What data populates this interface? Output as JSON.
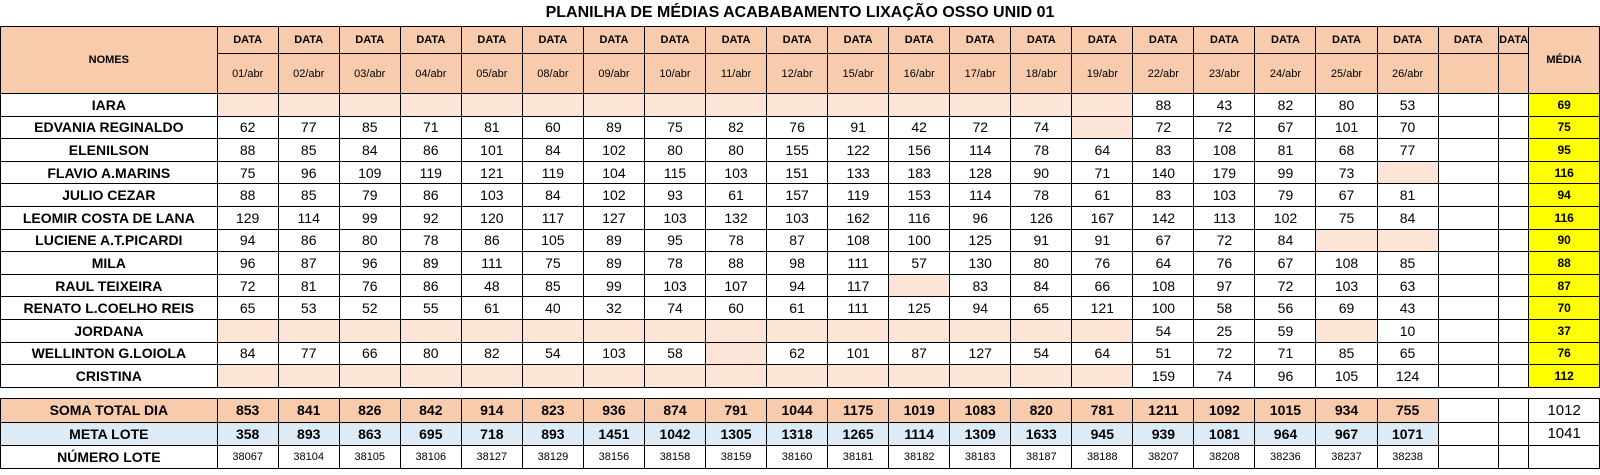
{
  "title": "PLANILHA DE MÉDIAS ACABABAMENTO LIXAÇÃO OSSO UNID 01",
  "header": {
    "names_label": "NOMES",
    "data_label": "DATA",
    "average_label": "MÉDIA",
    "dates": [
      "01/abr",
      "02/abr",
      "03/abr",
      "04/abr",
      "05/abr",
      "08/abr",
      "09/abr",
      "10/abr",
      "11/abr",
      "12/abr",
      "15/abr",
      "16/abr",
      "17/abr",
      "18/abr",
      "19/abr",
      "22/abr",
      "23/abr",
      "24/abr",
      "25/abr",
      "26/abr",
      "",
      ""
    ]
  },
  "rows": [
    {
      "name": "IARA",
      "values": [
        "",
        "",
        "",
        "",
        "",
        "",
        "",
        "",
        "",
        "",
        "",
        "",
        "",
        "",
        "",
        "88",
        "43",
        "82",
        "80",
        "53",
        "",
        ""
      ],
      "avg": "69"
    },
    {
      "name": "EDVANIA REGINALDO",
      "values": [
        "62",
        "77",
        "85",
        "71",
        "81",
        "60",
        "89",
        "75",
        "82",
        "76",
        "91",
        "42",
        "72",
        "74",
        "",
        "72",
        "72",
        "67",
        "101",
        "70",
        "",
        ""
      ],
      "avg": "75"
    },
    {
      "name": "ELENILSON",
      "values": [
        "88",
        "85",
        "84",
        "86",
        "101",
        "84",
        "102",
        "80",
        "80",
        "155",
        "122",
        "156",
        "114",
        "78",
        "64",
        "83",
        "108",
        "81",
        "68",
        "77",
        "",
        ""
      ],
      "avg": "95"
    },
    {
      "name": "FLAVIO A.MARINS",
      "values": [
        "75",
        "96",
        "109",
        "119",
        "121",
        "119",
        "104",
        "115",
        "103",
        "151",
        "133",
        "183",
        "128",
        "90",
        "71",
        "140",
        "179",
        "99",
        "73",
        "",
        "",
        ""
      ],
      "avg": "116"
    },
    {
      "name": "JULIO CEZAR",
      "values": [
        "88",
        "85",
        "79",
        "86",
        "103",
        "84",
        "102",
        "93",
        "61",
        "157",
        "119",
        "153",
        "114",
        "78",
        "61",
        "83",
        "103",
        "79",
        "67",
        "81",
        "",
        ""
      ],
      "avg": "94"
    },
    {
      "name": "LEOMIR COSTA DE LANA",
      "values": [
        "129",
        "114",
        "99",
        "92",
        "120",
        "117",
        "127",
        "103",
        "132",
        "103",
        "162",
        "116",
        "96",
        "126",
        "167",
        "142",
        "113",
        "102",
        "75",
        "84",
        "",
        ""
      ],
      "avg": "116"
    },
    {
      "name": "LUCIENE A.T.PICARDI",
      "values": [
        "94",
        "86",
        "80",
        "78",
        "86",
        "105",
        "89",
        "95",
        "78",
        "87",
        "108",
        "100",
        "125",
        "91",
        "91",
        "67",
        "72",
        "84",
        "",
        "",
        "",
        ""
      ],
      "avg": "90"
    },
    {
      "name": "MILA",
      "values": [
        "96",
        "87",
        "96",
        "89",
        "111",
        "75",
        "89",
        "78",
        "88",
        "98",
        "111",
        "57",
        "130",
        "80",
        "76",
        "64",
        "76",
        "67",
        "108",
        "85",
        "",
        ""
      ],
      "avg": "88"
    },
    {
      "name": "RAUL TEIXEIRA",
      "values": [
        "72",
        "81",
        "76",
        "86",
        "48",
        "85",
        "99",
        "103",
        "107",
        "94",
        "117",
        "",
        "83",
        "84",
        "66",
        "108",
        "97",
        "72",
        "103",
        "63",
        "",
        ""
      ],
      "avg": "87"
    },
    {
      "name": "RENATO L.COELHO REIS",
      "values": [
        "65",
        "53",
        "52",
        "55",
        "61",
        "40",
        "32",
        "74",
        "60",
        "61",
        "111",
        "125",
        "94",
        "65",
        "121",
        "100",
        "58",
        "56",
        "69",
        "43",
        "",
        ""
      ],
      "avg": "70"
    },
    {
      "name": "JORDANA",
      "values": [
        "",
        "",
        "",
        "",
        "",
        "",
        "",
        "",
        "",
        "",
        "",
        "",
        "",
        "",
        "",
        "54",
        "25",
        "59",
        "",
        "10",
        "",
        ""
      ],
      "avg": "37"
    },
    {
      "name": "WELLINTON G.LOIOLA",
      "values": [
        "84",
        "77",
        "66",
        "80",
        "82",
        "54",
        "103",
        "58",
        "",
        "62",
        "101",
        "87",
        "127",
        "54",
        "64",
        "51",
        "72",
        "71",
        "85",
        "65",
        "",
        ""
      ],
      "avg": "76"
    },
    {
      "name": "CRISTINA",
      "values": [
        "",
        "",
        "",
        "",
        "",
        "",
        "",
        "",
        "",
        "",
        "",
        "",
        "",
        "",
        "",
        "159",
        "74",
        "96",
        "105",
        "124",
        "",
        ""
      ],
      "avg": "112"
    }
  ],
  "soma": {
    "label": "SOMA TOTAL DIA",
    "values": [
      "853",
      "841",
      "826",
      "842",
      "914",
      "823",
      "936",
      "874",
      "791",
      "1044",
      "1175",
      "1019",
      "1083",
      "820",
      "781",
      "1211",
      "1092",
      "1015",
      "934",
      "755",
      "",
      ""
    ],
    "total": "1012"
  },
  "meta": {
    "label": "META LOTE",
    "values": [
      "358",
      "893",
      "863",
      "695",
      "718",
      "893",
      "1451",
      "1042",
      "1305",
      "1318",
      "1265",
      "1114",
      "1309",
      "1633",
      "945",
      "939",
      "1081",
      "964",
      "967",
      "1071",
      "",
      ""
    ],
    "total": "1041"
  },
  "lote": {
    "label": "NÚMERO LOTE",
    "values": [
      "38067",
      "38104",
      "38105",
      "38106",
      "38127",
      "38129",
      "38156",
      "38158",
      "38159",
      "38160",
      "38181",
      "38182",
      "38183",
      "38187",
      "38188",
      "38207",
      "38208",
      "38236",
      "38237",
      "38238",
      "",
      ""
    ],
    "total": ""
  },
  "colors": {
    "header": "#F8CBAD",
    "empty_cell": "#FCE4D6",
    "average": "#FFFF00",
    "meta_row": "#DDEBF7"
  }
}
